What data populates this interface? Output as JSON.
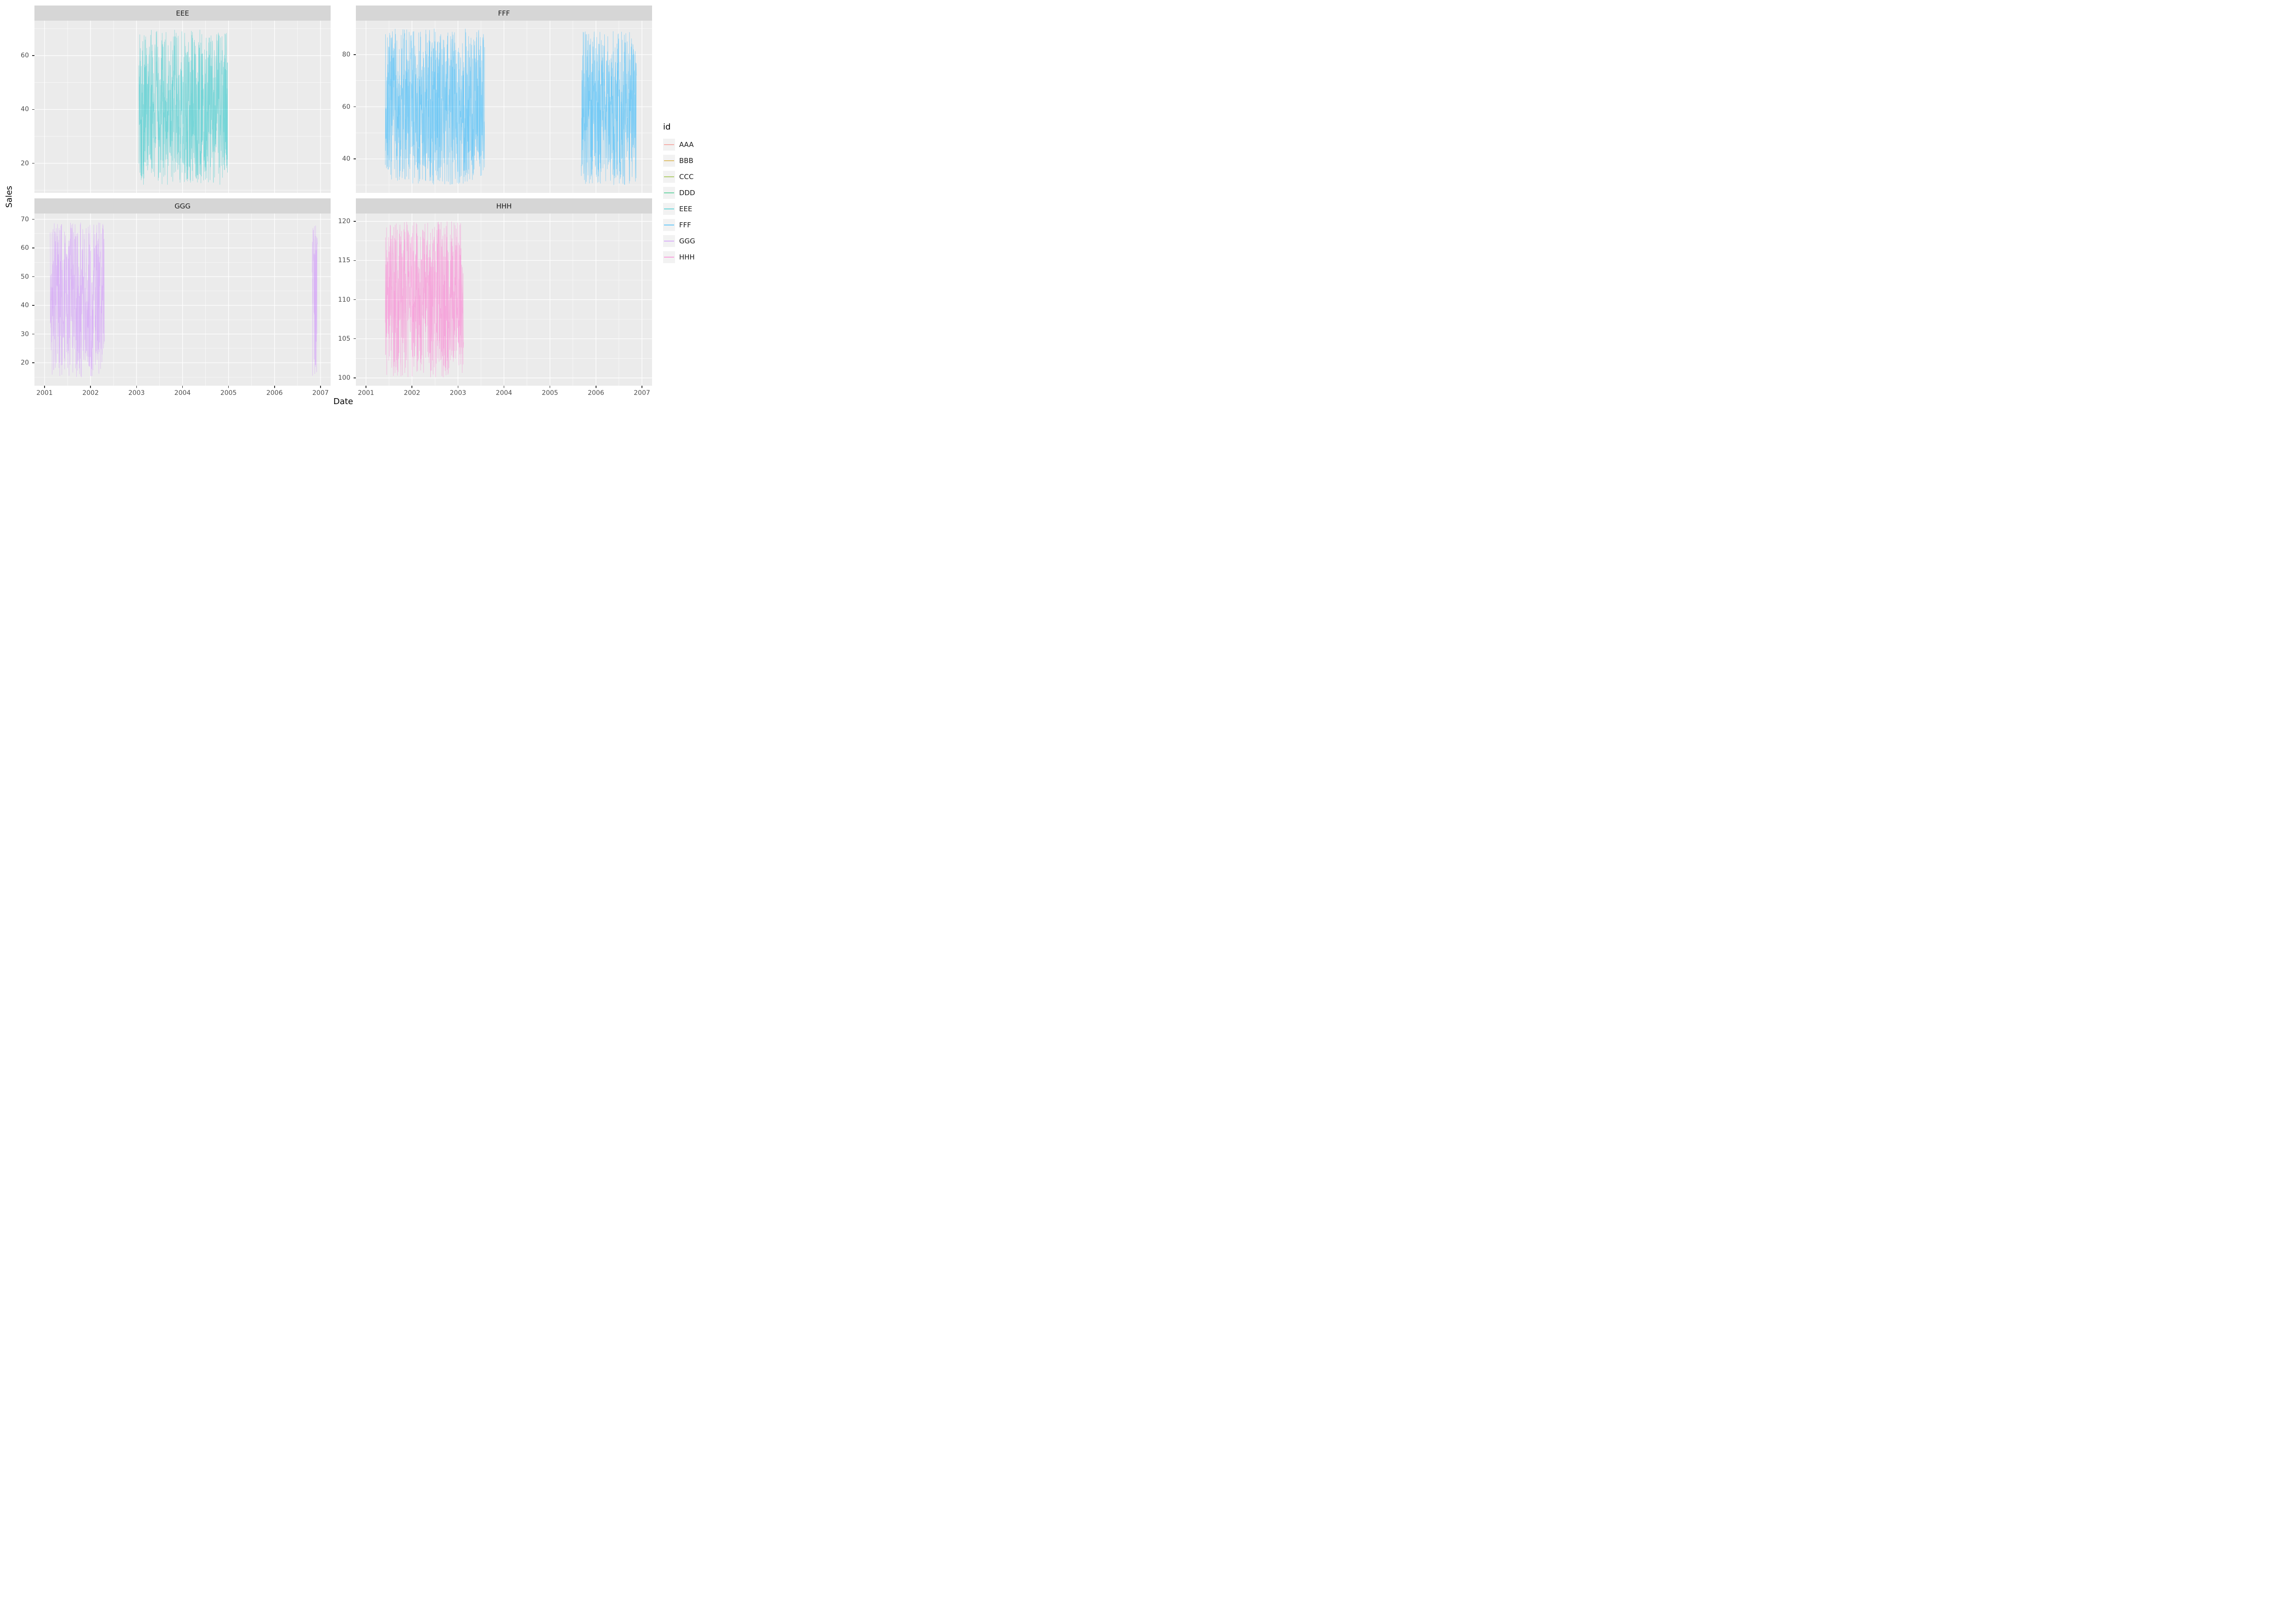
{
  "figure": {
    "ylabel": "Sales",
    "xlabel": "Date",
    "legend": {
      "title": "id",
      "entries": [
        {
          "label": "AAA",
          "color": "#F8766D"
        },
        {
          "label": "BBB",
          "color": "#CD9600"
        },
        {
          "label": "CCC",
          "color": "#7CAE00"
        },
        {
          "label": "DDD",
          "color": "#00BE67"
        },
        {
          "label": "EEE",
          "color": "#00BFC4"
        },
        {
          "label": "FFF",
          "color": "#00A9FF"
        },
        {
          "label": "GGG",
          "color": "#C77CFF"
        },
        {
          "label": "HHH",
          "color": "#FF61CC"
        }
      ]
    }
  },
  "chart_data": {
    "type": "line",
    "title": "",
    "xlabel": "Date",
    "ylabel": "Sales",
    "facet_variable": "id",
    "style": "ggplot2 facet_wrap with free y scales; dense high-variance daily time-series noise drawn as thin semi-transparent lines on grey panels with white major/minor gridlines",
    "x_ticks": [
      2001,
      2002,
      2003,
      2004,
      2005,
      2006,
      2007
    ],
    "xlim": [
      2000.78,
      2007.22
    ],
    "facets": [
      {
        "title": "EEE",
        "color": "#00BFC4",
        "y_ticks": [
          20,
          40,
          60
        ],
        "ylim": [
          9,
          73
        ],
        "segments": [
          {
            "x_start": 2003.05,
            "x_end": 2004.98,
            "y_min": 12,
            "y_max": 70
          }
        ]
      },
      {
        "title": "FFF",
        "color": "#00A9FF",
        "y_ticks": [
          40,
          60,
          80
        ],
        "ylim": [
          27,
          93
        ],
        "segments": [
          {
            "x_start": 2001.42,
            "x_end": 2003.58,
            "y_min": 30,
            "y_max": 90
          },
          {
            "x_start": 2005.68,
            "x_end": 2006.88,
            "y_min": 30,
            "y_max": 89
          }
        ]
      },
      {
        "title": "GGG",
        "color": "#C77CFF",
        "y_ticks": [
          20,
          30,
          40,
          50,
          60,
          70
        ],
        "ylim": [
          12,
          72
        ],
        "segments": [
          {
            "x_start": 2001.12,
            "x_end": 2002.3,
            "y_min": 15,
            "y_max": 69
          },
          {
            "x_start": 2006.82,
            "x_end": 2006.93,
            "y_min": 15,
            "y_max": 69
          }
        ]
      },
      {
        "title": "HHH",
        "color": "#FF61CC",
        "y_ticks": [
          100,
          105,
          110,
          115,
          120
        ],
        "ylim": [
          99,
          121
        ],
        "segments": [
          {
            "x_start": 2001.42,
            "x_end": 2003.12,
            "y_min": 100,
            "y_max": 120
          }
        ]
      }
    ]
  }
}
